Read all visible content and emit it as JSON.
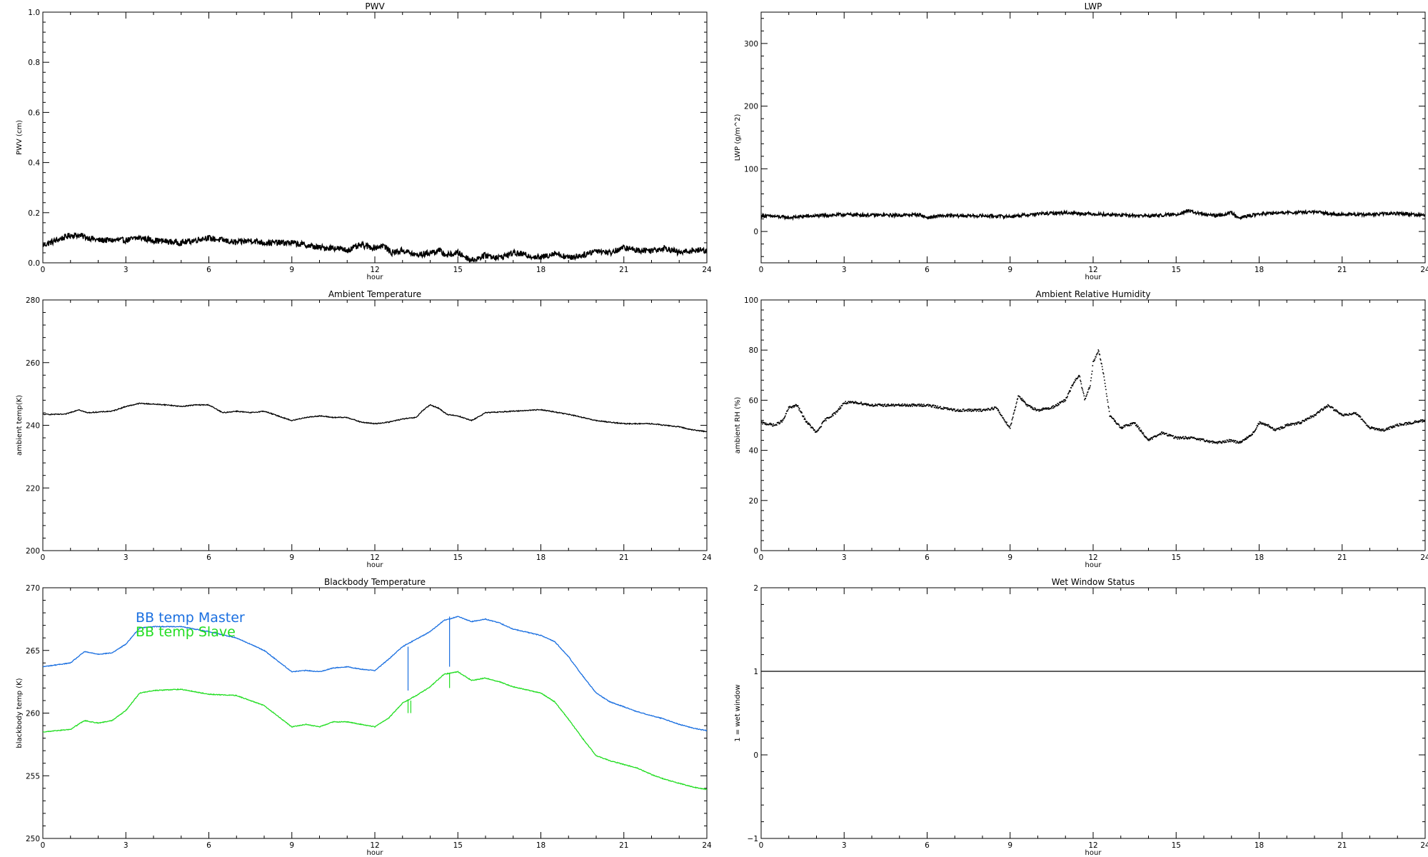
{
  "chart_data": [
    {
      "id": "pwv",
      "type": "line",
      "title": "PWV",
      "xlabel": "hour",
      "ylabel": "PWV (cm)",
      "xlim": [
        0,
        24
      ],
      "ylim": [
        0,
        1.0
      ],
      "xticks": [
        0,
        3,
        6,
        9,
        12,
        15,
        18,
        21,
        24
      ],
      "yticks": [
        0.0,
        0.2,
        0.4,
        0.6,
        0.8,
        1.0
      ],
      "ytick_labels": [
        "0.0",
        "0.2",
        "0.4",
        "0.6",
        "0.8",
        "1.0"
      ],
      "grid": false,
      "series": [
        {
          "color": "#000000",
          "noise": 0.012,
          "x": [
            0,
            0.5,
            1.0,
            1.3,
            2.0,
            3.0,
            3.5,
            4.0,
            5.0,
            5.5,
            5.9,
            6.5,
            7.0,
            7.5,
            8.0,
            9.0,
            9.5,
            10.0,
            10.5,
            11.0,
            11.5,
            12.0,
            12.3,
            12.6,
            13.0,
            13.5,
            14.0,
            14.3,
            14.6,
            15.0,
            15.5,
            16.0,
            16.5,
            17.0,
            17.5,
            18.0,
            18.5,
            19.0,
            19.5,
            20.0,
            20.5,
            21.0,
            21.5,
            22.0,
            22.5,
            23.0,
            23.5,
            24.0
          ],
          "y": [
            0.07,
            0.09,
            0.11,
            0.11,
            0.09,
            0.09,
            0.1,
            0.09,
            0.08,
            0.09,
            0.1,
            0.09,
            0.08,
            0.09,
            0.08,
            0.08,
            0.07,
            0.06,
            0.06,
            0.05,
            0.07,
            0.06,
            0.07,
            0.04,
            0.05,
            0.03,
            0.04,
            0.05,
            0.03,
            0.04,
            0.01,
            0.03,
            0.02,
            0.04,
            0.03,
            0.02,
            0.04,
            0.02,
            0.03,
            0.05,
            0.04,
            0.06,
            0.05,
            0.05,
            0.06,
            0.04,
            0.05,
            0.05
          ]
        }
      ]
    },
    {
      "id": "lwp",
      "type": "line",
      "title": "LWP",
      "xlabel": "hour",
      "ylabel": "LWP (g/m^2)",
      "xlim": [
        0,
        24
      ],
      "ylim": [
        -50,
        350
      ],
      "xticks": [
        0,
        3,
        6,
        9,
        12,
        15,
        18,
        21,
        24
      ],
      "yticks": [
        0,
        100,
        200,
        300
      ],
      "ytick_labels": [
        "0",
        "100",
        "200",
        "300"
      ],
      "grid": false,
      "series": [
        {
          "color": "#000000",
          "noise": 2.5,
          "x": [
            0,
            0.5,
            1.0,
            1.5,
            2.0,
            3.0,
            4.0,
            5.0,
            5.7,
            6.0,
            6.5,
            7.0,
            8.0,
            9.0,
            10.0,
            11.0,
            12.0,
            13.0,
            14.0,
            15.0,
            15.4,
            16.0,
            16.5,
            17.0,
            17.3,
            18.0,
            19.0,
            20.0,
            21.0,
            22.0,
            23.0,
            24.0
          ],
          "y": [
            25,
            24,
            22,
            24,
            25,
            27,
            26,
            26,
            27,
            22,
            25,
            25,
            25,
            24,
            28,
            30,
            28,
            26,
            25,
            27,
            33,
            27,
            25,
            30,
            22,
            28,
            30,
            31,
            27,
            27,
            29,
            26
          ]
        }
      ]
    },
    {
      "id": "ambient-temperature",
      "type": "line",
      "title": "Ambient Temperature",
      "xlabel": "hour",
      "ylabel": "ambient temp(K)",
      "xlim": [
        0,
        24
      ],
      "ylim": [
        200,
        280
      ],
      "xticks": [
        0,
        3,
        6,
        9,
        12,
        15,
        18,
        21,
        24
      ],
      "yticks": [
        200,
        220,
        240,
        260,
        280
      ],
      "ytick_labels": [
        "200",
        "220",
        "240",
        "260",
        "280"
      ],
      "grid": false,
      "series": [
        {
          "color": "#000000",
          "noise": 0.15,
          "x": [
            0,
            0.8,
            1.3,
            1.6,
            2.5,
            3.0,
            3.5,
            4.5,
            5.0,
            5.5,
            6.0,
            6.5,
            7.0,
            7.5,
            8.0,
            8.5,
            9.0,
            9.5,
            10.0,
            10.5,
            11.0,
            11.5,
            12.0,
            12.5,
            13.0,
            13.5,
            13.7,
            14.0,
            14.3,
            14.6,
            15.0,
            15.5,
            16.0,
            17.0,
            18.0,
            19.0,
            20.0,
            21.0,
            22.0,
            23.0,
            23.5,
            24.0
          ],
          "y": [
            243.5,
            243.5,
            245,
            244,
            244.5,
            246,
            247,
            246.5,
            246,
            246.5,
            246.5,
            244,
            244.5,
            244,
            244.5,
            243,
            241.5,
            242.5,
            243,
            242.5,
            242.5,
            241,
            240.5,
            241,
            242,
            242.5,
            244.5,
            246.5,
            245.5,
            243.5,
            243,
            241.5,
            244,
            244.5,
            245,
            243.5,
            241.5,
            240.5,
            240.5,
            239.5,
            238.5,
            238
          ]
        }
      ]
    },
    {
      "id": "ambient-relative-humidity",
      "type": "scatter",
      "title": "Ambient Relative Humidity",
      "xlabel": "hour",
      "ylabel": "ambient RH (%)",
      "xlim": [
        0,
        24
      ],
      "ylim": [
        0,
        100
      ],
      "xticks": [
        0,
        3,
        6,
        9,
        12,
        15,
        18,
        21,
        24
      ],
      "yticks": [
        0,
        20,
        40,
        60,
        80,
        100
      ],
      "ytick_labels": [
        "0",
        "20",
        "40",
        "60",
        "80",
        "100"
      ],
      "grid": false,
      "series": [
        {
          "color": "#000000",
          "noise": 0.5,
          "x": [
            0,
            0.5,
            0.8,
            1.0,
            1.3,
            1.6,
            2.0,
            2.3,
            2.7,
            3.0,
            3.5,
            4.0,
            5.0,
            6.0,
            7.0,
            8.0,
            8.5,
            8.8,
            9.0,
            9.3,
            9.6,
            10.0,
            10.5,
            11.0,
            11.3,
            11.5,
            11.7,
            11.9,
            12.0,
            12.2,
            12.4,
            12.6,
            13.0,
            13.5,
            14.0,
            14.5,
            15.0,
            15.5,
            16.0,
            16.5,
            17.0,
            17.3,
            17.8,
            18.0,
            18.3,
            18.6,
            19.0,
            19.5,
            20.0,
            20.5,
            21.0,
            21.5,
            22.0,
            22.5,
            23.0,
            23.5,
            24.0
          ],
          "y": [
            51,
            50,
            52,
            57,
            58,
            52,
            47,
            52,
            55,
            59,
            59,
            58,
            58,
            58,
            56,
            56,
            57,
            52,
            49,
            62,
            58,
            56,
            57,
            60,
            67,
            70,
            60,
            66,
            75,
            80,
            69,
            54,
            49,
            51,
            44,
            47,
            45,
            45,
            44,
            43,
            44,
            43,
            47,
            51,
            50,
            48,
            50,
            51,
            54,
            58,
            54,
            55,
            49,
            48,
            50,
            51,
            52
          ]
        }
      ]
    },
    {
      "id": "blackbody-temperature",
      "type": "line",
      "title": "Blackbody Temperature",
      "xlabel": "hour",
      "ylabel": "blackbody temp (K)",
      "xlim": [
        0,
        24
      ],
      "ylim": [
        250,
        270
      ],
      "xticks": [
        0,
        3,
        6,
        9,
        12,
        15,
        18,
        21,
        24
      ],
      "yticks": [
        250,
        255,
        260,
        265,
        270
      ],
      "ytick_labels": [
        "250",
        "255",
        "260",
        "265",
        "270"
      ],
      "grid": false,
      "legend": {
        "placement": "top-left",
        "entries": [
          "BB temp Master",
          "BB temp Slave"
        ]
      },
      "series": [
        {
          "name": "BB temp Master",
          "color": "#1a6fe0",
          "noise": 0.03,
          "x": [
            0,
            1.0,
            1.5,
            2.0,
            2.5,
            3.0,
            3.5,
            4.0,
            5.0,
            6.0,
            7.0,
            8.0,
            9.0,
            9.5,
            10.0,
            10.5,
            11.0,
            11.5,
            12.0,
            12.5,
            13.0,
            13.5,
            14.0,
            14.5,
            15.0,
            15.5,
            16.0,
            16.5,
            17.0,
            18.0,
            18.5,
            19.0,
            19.5,
            20.0,
            20.5,
            21.0,
            21.5,
            22.0,
            22.5,
            23.0,
            23.5,
            24.0
          ],
          "y": [
            263.7,
            264,
            264.9,
            264.7,
            264.8,
            265.5,
            266.8,
            266.9,
            266.9,
            266.5,
            266,
            265,
            263.3,
            263.4,
            263.3,
            263.6,
            263.7,
            263.5,
            263.4,
            264.3,
            265.3,
            265.9,
            266.5,
            267.4,
            267.7,
            267.3,
            267.5,
            267.2,
            266.7,
            266.2,
            265.7,
            264.5,
            263,
            261.6,
            260.9,
            260.5,
            260.1,
            259.8,
            259.5,
            259.1,
            258.8,
            258.6
          ]
        },
        {
          "name": "BB temp Slave",
          "color": "#22dd22",
          "noise": 0.03,
          "x": [
            0,
            1.0,
            1.5,
            2.0,
            2.5,
            3.0,
            3.5,
            4.0,
            5.0,
            6.0,
            7.0,
            8.0,
            9.0,
            9.5,
            10.0,
            10.5,
            11.0,
            11.5,
            12.0,
            12.5,
            13.0,
            13.5,
            14.0,
            14.5,
            15.0,
            15.5,
            16.0,
            16.5,
            17.0,
            18.0,
            18.5,
            19.0,
            19.5,
            20.0,
            20.5,
            21.0,
            21.5,
            22.0,
            22.5,
            23.0,
            23.5,
            24.0
          ],
          "y": [
            258.5,
            258.7,
            259.4,
            259.2,
            259.4,
            260.2,
            261.6,
            261.8,
            261.9,
            261.5,
            261.4,
            260.6,
            258.9,
            259.1,
            258.9,
            259.3,
            259.3,
            259.1,
            258.9,
            259.6,
            260.8,
            261.4,
            262.1,
            263.1,
            263.3,
            262.6,
            262.8,
            262.5,
            262.1,
            261.6,
            260.9,
            259.5,
            258,
            256.6,
            256.2,
            255.9,
            255.6,
            255.1,
            254.7,
            254.4,
            254.1,
            253.9
          ]
        }
      ],
      "spikes": [
        {
          "color": "#1a6fe0",
          "x": 13.2,
          "y": [
            261.8,
            265.3
          ]
        },
        {
          "color": "#1a6fe0",
          "x": 14.7,
          "y": [
            263.7,
            267.7
          ]
        },
        {
          "color": "#22dd22",
          "x": 13.2,
          "y": [
            260.0,
            261.0
          ]
        },
        {
          "color": "#22dd22",
          "x": 13.3,
          "y": [
            260.0,
            261.0
          ]
        },
        {
          "color": "#22dd22",
          "x": 14.7,
          "y": [
            262.0,
            263.2
          ]
        }
      ]
    },
    {
      "id": "wet-window-status",
      "type": "line",
      "title": "Wet Window Status",
      "xlabel": "hour",
      "ylabel": "1 = wet window",
      "xlim": [
        0,
        24
      ],
      "ylim": [
        -1,
        2
      ],
      "xticks": [
        0,
        3,
        6,
        9,
        12,
        15,
        18,
        21,
        24
      ],
      "yticks": [
        -1,
        0,
        1,
        2
      ],
      "ytick_labels": [
        "−1",
        "0",
        "1",
        "2"
      ],
      "grid": false,
      "series": [
        {
          "color": "#000000",
          "noise": 0,
          "x": [
            0,
            24
          ],
          "y": [
            1,
            1
          ]
        }
      ]
    }
  ]
}
